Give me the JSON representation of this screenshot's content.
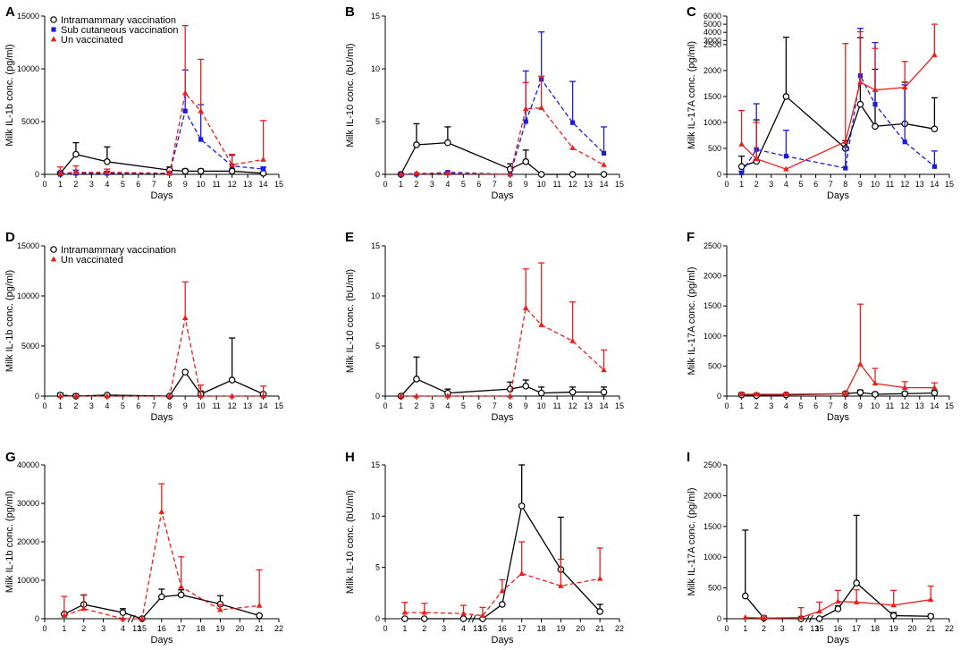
{
  "colors": {
    "intramammary": "#000000",
    "subcutaneous": "#1a1adc",
    "unvaccinated": "#e8201c"
  },
  "chart_data": [
    {
      "letter": "A",
      "type": "line",
      "ylabel": "Milk IL-1b conc. (pg/ml)",
      "xlabel": "Days",
      "xlim": [
        0,
        15
      ],
      "ylim": [
        0,
        15000
      ],
      "xticks": [
        0,
        1,
        2,
        3,
        4,
        5,
        6,
        7,
        8,
        9,
        10,
        11,
        12,
        13,
        14,
        15
      ],
      "yticks": [
        0,
        5000,
        10000,
        15000
      ],
      "legend": [
        "Intramammary vaccination",
        "Sub cutaneous vaccination",
        "Un vaccinated"
      ],
      "series": [
        {
          "name": "Intramammary vaccination",
          "key": "intramammary",
          "marker": "circle",
          "dash": false,
          "x": [
            1,
            2,
            4,
            8,
            9,
            10,
            12,
            14
          ],
          "y": [
            100,
            1900,
            1200,
            400,
            300,
            300,
            300,
            100
          ],
          "err": [
            100,
            1100,
            1400,
            300,
            200,
            200,
            200,
            0
          ]
        },
        {
          "name": "Sub cutaneous vaccination",
          "key": "subcutaneous",
          "marker": "square",
          "dash": true,
          "x": [
            1,
            2,
            4,
            8,
            9,
            10,
            12,
            14
          ],
          "y": [
            0,
            100,
            100,
            100,
            6000,
            3300,
            800,
            500
          ],
          "err": [
            200,
            300,
            200,
            100,
            3900,
            3300,
            1000,
            200
          ]
        },
        {
          "name": "Un vaccinated",
          "key": "unvaccinated",
          "marker": "triangle",
          "dash": true,
          "x": [
            1,
            2,
            4,
            8,
            9,
            10,
            12,
            14
          ],
          "y": [
            100,
            200,
            200,
            100,
            7700,
            6000,
            900,
            1400
          ],
          "err": [
            600,
            600,
            300,
            200,
            6400,
            4900,
            1000,
            3700
          ]
        }
      ]
    },
    {
      "letter": "D",
      "type": "line",
      "ylabel": "Milk IL-1b conc. (pg/ml)",
      "xlabel": "Days",
      "xlim": [
        0,
        15
      ],
      "ylim": [
        0,
        15000
      ],
      "xticks": [
        0,
        1,
        2,
        3,
        4,
        5,
        6,
        7,
        8,
        9,
        10,
        11,
        12,
        13,
        14,
        15
      ],
      "yticks": [
        0,
        5000,
        10000,
        15000
      ],
      "legend": [
        "Intramammary vaccination",
        "Un vaccinated"
      ],
      "series": [
        {
          "name": "Intramammary vaccination",
          "key": "intramammary",
          "marker": "circle",
          "dash": false,
          "x": [
            1,
            2,
            4,
            8,
            9,
            10,
            12,
            14
          ],
          "y": [
            100,
            0,
            100,
            0,
            2400,
            200,
            1600,
            200
          ],
          "err": [
            200,
            200,
            100,
            0,
            0,
            300,
            4200,
            100
          ]
        },
        {
          "name": "Un vaccinated",
          "key": "unvaccinated",
          "marker": "triangle",
          "dash": true,
          "x": [
            1,
            2,
            4,
            8,
            9,
            10,
            12,
            14
          ],
          "y": [
            0,
            0,
            0,
            0,
            7800,
            0,
            0,
            0
          ],
          "err": [
            0,
            0,
            0,
            0,
            3600,
            1100,
            0,
            1000
          ]
        }
      ]
    },
    {
      "letter": "G",
      "type": "line",
      "ylabel": "Milk IL-1b conc. (pg/ml)",
      "xlabel": "Days",
      "xlim": [
        0,
        22
      ],
      "ylim": [
        0,
        40000
      ],
      "xbreak": [
        4,
        5,
        13,
        15
      ],
      "xbreaklabel": "13",
      "xticks": [
        0,
        1,
        2,
        3,
        4,
        15,
        16,
        17,
        18,
        19,
        20,
        21,
        22
      ],
      "yticks": [
        0,
        10000,
        20000,
        30000,
        40000
      ],
      "series": [
        {
          "name": "Intramammary vaccination",
          "key": "intramammary",
          "marker": "circle",
          "dash": false,
          "x": [
            1,
            2,
            4,
            15,
            16,
            17,
            19,
            21
          ],
          "y": [
            1200,
            3700,
            1600,
            0,
            5700,
            6200,
            3800,
            800
          ],
          "err": [
            0,
            2500,
            1000,
            0,
            2000,
            1300,
            2200,
            300
          ]
        },
        {
          "name": "Un vaccinated",
          "key": "unvaccinated",
          "marker": "triangle",
          "dash": true,
          "x": [
            1,
            2,
            4,
            15,
            16,
            17,
            19,
            21
          ],
          "y": [
            800,
            2600,
            0,
            0,
            27800,
            8300,
            2300,
            3400
          ],
          "err": [
            5000,
            3500,
            0,
            0,
            7300,
            7800,
            1400,
            9300
          ]
        }
      ]
    },
    {
      "letter": "B",
      "type": "line",
      "ylabel": "Milk IL-10 conc. (bU/ml)",
      "xlabel": "Days",
      "xlim": [
        0,
        15
      ],
      "ylim": [
        0,
        15
      ],
      "xticks": [
        0,
        1,
        2,
        3,
        4,
        5,
        6,
        7,
        8,
        9,
        10,
        11,
        12,
        13,
        14,
        15
      ],
      "yticks": [
        0,
        5,
        10,
        15
      ],
      "series": [
        {
          "name": "Intramammary vaccination",
          "key": "intramammary",
          "marker": "circle",
          "dash": false,
          "x": [
            1,
            2,
            4,
            8,
            9,
            10,
            12,
            14
          ],
          "y": [
            0,
            2.8,
            3.0,
            0.5,
            1.2,
            0,
            0,
            0
          ],
          "err": [
            0,
            2.0,
            1.5,
            0.5,
            1.1,
            0,
            0,
            0
          ]
        },
        {
          "name": "Sub cutaneous vaccination",
          "key": "subcutaneous",
          "marker": "square",
          "dash": true,
          "x": [
            1,
            2,
            4,
            8,
            9,
            10,
            12,
            14
          ],
          "y": [
            0,
            0,
            0.2,
            0,
            5.0,
            9.0,
            4.9,
            2.0
          ],
          "err": [
            0,
            0,
            0,
            0,
            4.8,
            4.5,
            3.9,
            2.5
          ]
        },
        {
          "name": "Un vaccinated",
          "key": "unvaccinated",
          "marker": "triangle",
          "dash": true,
          "x": [
            1,
            2,
            4,
            8,
            9,
            10,
            12,
            14
          ],
          "y": [
            0,
            0.1,
            0.1,
            0,
            6.2,
            6.3,
            2.5,
            0.9
          ],
          "err": [
            0,
            0,
            0,
            0,
            2.5,
            3.0,
            0,
            0
          ]
        }
      ]
    },
    {
      "letter": "E",
      "type": "line",
      "ylabel": "Milk IL-10 conc. (bU/ml)",
      "xlabel": "Days",
      "xlim": [
        0,
        15
      ],
      "ylim": [
        0,
        15
      ],
      "xticks": [
        0,
        1,
        2,
        3,
        4,
        5,
        6,
        7,
        8,
        9,
        10,
        11,
        12,
        13,
        14,
        15
      ],
      "yticks": [
        0,
        5,
        10,
        15
      ],
      "series": [
        {
          "name": "Intramammary vaccination",
          "key": "intramammary",
          "marker": "circle",
          "dash": false,
          "x": [
            1,
            2,
            4,
            8,
            9,
            10,
            12,
            14
          ],
          "y": [
            0,
            1.7,
            0.3,
            0.7,
            1.0,
            0.3,
            0.4,
            0.4
          ],
          "err": [
            0,
            2.2,
            0.4,
            0.7,
            0.6,
            0.6,
            0.5,
            0.5
          ]
        },
        {
          "name": "Un vaccinated",
          "key": "unvaccinated",
          "marker": "triangle",
          "dash": true,
          "x": [
            1,
            2,
            4,
            8,
            9,
            10,
            12,
            14
          ],
          "y": [
            0,
            0,
            0,
            0,
            8.8,
            7.1,
            5.5,
            2.6
          ],
          "err": [
            0,
            0,
            0,
            0,
            3.9,
            6.2,
            3.9,
            2.0
          ]
        }
      ]
    },
    {
      "letter": "H",
      "type": "line",
      "ylabel": "Milk IL-10 conc. (bU/ml)",
      "xlabel": "Days",
      "xlim": [
        0,
        22
      ],
      "ylim": [
        0,
        15
      ],
      "xbreak": [
        4,
        5,
        13,
        15
      ],
      "xbreaklabel": "13",
      "xticks": [
        0,
        1,
        2,
        3,
        4,
        15,
        16,
        17,
        18,
        19,
        20,
        21,
        22
      ],
      "yticks": [
        0,
        5,
        10,
        15
      ],
      "series": [
        {
          "name": "Intramammary vaccination",
          "key": "intramammary",
          "marker": "circle",
          "dash": false,
          "x": [
            1,
            2,
            4,
            15,
            16,
            17,
            19,
            21
          ],
          "y": [
            0,
            0,
            0,
            0,
            1.4,
            11.0,
            4.8,
            0.7
          ],
          "err": [
            0,
            0,
            0,
            0,
            0,
            4.5,
            5.1,
            0.7
          ]
        },
        {
          "name": "Un vaccinated",
          "key": "unvaccinated",
          "marker": "triangle",
          "dash": true,
          "x": [
            1,
            2,
            4,
            15,
            16,
            17,
            19,
            21
          ],
          "y": [
            0.6,
            0.6,
            0.5,
            0.3,
            2.7,
            4.4,
            3.2,
            3.9
          ],
          "err": [
            1.0,
            0.9,
            0.8,
            0.8,
            1.1,
            3.1,
            2.6,
            3.0
          ]
        }
      ]
    },
    {
      "letter": "C",
      "type": "line",
      "ylabel": "Milk IL-17A conc. (pg/ml)",
      "xlabel": "Days",
      "xlim": [
        0,
        15
      ],
      "ylim": [
        0,
        6000
      ],
      "ybreak": 2500,
      "xticks": [
        0,
        1,
        2,
        3,
        4,
        5,
        6,
        7,
        8,
        9,
        10,
        11,
        12,
        13,
        14,
        15
      ],
      "yticks": [
        0,
        500,
        1000,
        1500,
        2000,
        2500,
        3000,
        4000,
        5000,
        6000
      ],
      "series": [
        {
          "name": "Intramammary vaccination",
          "key": "intramammary",
          "marker": "circle",
          "dash": false,
          "x": [
            1,
            2,
            4,
            8,
            9,
            10,
            12,
            14
          ],
          "y": [
            150,
            250,
            1500,
            500,
            1350,
            925,
            975,
            875
          ],
          "err": [
            200,
            800,
            1900,
            150,
            2000,
            1100,
            800,
            600
          ]
        },
        {
          "name": "Sub cutaneous vaccination",
          "key": "subcutaneous",
          "marker": "square",
          "dash": true,
          "x": [
            1,
            2,
            4,
            8,
            9,
            10,
            12,
            14
          ],
          "y": [
            30,
            480,
            350,
            120,
            1900,
            1350,
            625,
            150
          ],
          "err": [
            30,
            880,
            500,
            400,
            2600,
            1400,
            1100,
            300
          ]
        },
        {
          "name": "Un vaccinated",
          "key": "unvaccinated",
          "marker": "triangle",
          "dash": false,
          "x": [
            1,
            2,
            4,
            8,
            9,
            10,
            12,
            14
          ],
          "y": [
            580,
            300,
            100,
            630,
            1775,
            1625,
            1675,
            2300
          ],
          "err": [
            650,
            700,
            0,
            2000,
            2300,
            800,
            500,
            2700
          ]
        }
      ]
    },
    {
      "letter": "F",
      "type": "line",
      "ylabel": "Milk IL-17A conc. (pg/ml)",
      "xlabel": "Days",
      "xlim": [
        0,
        15
      ],
      "ylim": [
        0,
        2500
      ],
      "xticks": [
        0,
        1,
        2,
        3,
        4,
        5,
        6,
        7,
        8,
        9,
        10,
        11,
        12,
        13,
        14,
        15
      ],
      "yticks": [
        0,
        500,
        1000,
        1500,
        2000,
        2500
      ],
      "series": [
        {
          "name": "Intramammary vaccination",
          "key": "intramammary",
          "marker": "circle",
          "dash": false,
          "x": [
            1,
            2,
            4,
            8,
            9,
            10,
            12,
            14
          ],
          "y": [
            20,
            10,
            20,
            40,
            60,
            30,
            40,
            50
          ],
          "err": [
            20,
            20,
            20,
            30,
            40,
            30,
            30,
            40
          ]
        },
        {
          "name": "Un vaccinated",
          "key": "unvaccinated",
          "marker": "triangle",
          "dash": false,
          "x": [
            1,
            2,
            4,
            8,
            9,
            10,
            12,
            14
          ],
          "y": [
            30,
            30,
            30,
            40,
            530,
            210,
            140,
            140
          ],
          "err": [
            30,
            20,
            20,
            30,
            1000,
            250,
            100,
            80
          ]
        }
      ]
    },
    {
      "letter": "I",
      "type": "line",
      "ylabel": "Milk IL-17A conc. (pg/ml)",
      "xlabel": "Days",
      "xlim": [
        0,
        22
      ],
      "ylim": [
        0,
        2500
      ],
      "xbreak": [
        4,
        5,
        13,
        15
      ],
      "xbreaklabel": "13",
      "xticks": [
        0,
        1,
        2,
        3,
        4,
        15,
        16,
        17,
        18,
        19,
        20,
        21,
        22
      ],
      "yticks": [
        0,
        500,
        1000,
        1500,
        2000,
        2500
      ],
      "series": [
        {
          "name": "Intramammary vaccination",
          "key": "intramammary",
          "marker": "circle",
          "dash": false,
          "x": [
            1,
            2,
            4,
            15,
            16,
            17,
            19,
            21
          ],
          "y": [
            370,
            10,
            0,
            0,
            160,
            580,
            50,
            40
          ],
          "err": [
            1070,
            0,
            0,
            0,
            50,
            1100,
            50,
            30
          ]
        },
        {
          "name": "Un vaccinated",
          "key": "unvaccinated",
          "marker": "triangle",
          "dash": false,
          "x": [
            1,
            2,
            4,
            15,
            16,
            17,
            19,
            21
          ],
          "y": [
            20,
            10,
            20,
            120,
            280,
            270,
            220,
            310
          ],
          "err": [
            0,
            40,
            160,
            150,
            180,
            200,
            240,
            220
          ]
        }
      ]
    }
  ]
}
